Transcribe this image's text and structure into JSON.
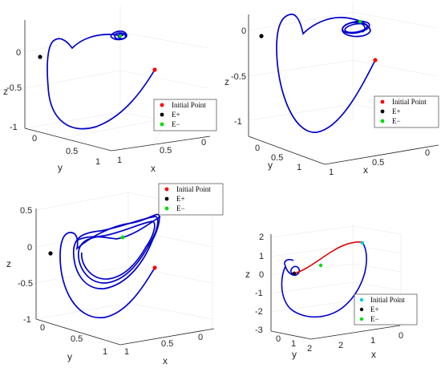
{
  "chart_data": [
    {
      "type": "line",
      "projection": "3d",
      "title": "",
      "xlabel": "x",
      "ylabel": "y",
      "zlabel": "z",
      "x_ticks": [
        "0",
        "0.5",
        "1"
      ],
      "y_ticks": [
        "0",
        "0.5",
        "1"
      ],
      "z_ticks": [
        "0",
        "-0.5",
        "-1"
      ],
      "xlim": [
        0,
        1
      ],
      "ylim": [
        0,
        1
      ],
      "zlim": [
        -1,
        0.1
      ],
      "grid": true,
      "legend_position": "bottom-right",
      "series": [
        {
          "name": "",
          "color": "#0000cc",
          "values": [
            [
              0.42,
              0.62,
              -0.35
            ],
            [
              0.6,
              0.75,
              -0.62
            ],
            [
              0.95,
              0.9,
              -0.95
            ],
            [
              0.6,
              0.2,
              -0.72
            ],
            [
              0.12,
              0.05,
              -0.2
            ],
            [
              0.05,
              0.08,
              0.08
            ],
            [
              0.2,
              0.2,
              0.02
            ],
            [
              0.3,
              0.4,
              0.09
            ],
            [
              0.32,
              0.55,
              0.1
            ]
          ]
        }
      ],
      "points": [
        {
          "name": "Initial Point",
          "color": "#ff0000",
          "values": [
            0.42,
            0.62,
            -0.35
          ]
        },
        {
          "name": "E+",
          "color": "#000000",
          "values": [
            0.0,
            0.0,
            -0.12
          ]
        },
        {
          "name": "E−",
          "color": "#00dd00",
          "values": [
            0.32,
            0.55,
            0.1
          ]
        }
      ],
      "legend": [
        {
          "label": "Initial Point",
          "color": "#ff0000"
        },
        {
          "label": "E+",
          "color": "#000000"
        },
        {
          "label": "E−",
          "color": "#00dd00"
        }
      ]
    },
    {
      "type": "line",
      "projection": "3d",
      "title": "",
      "xlabel": "x",
      "ylabel": "y",
      "zlabel": "z",
      "x_ticks": [
        "0",
        "0.5",
        "1"
      ],
      "y_ticks": [
        "0",
        "0.5",
        "1"
      ],
      "z_ticks": [
        "0",
        "-0.5",
        "-1"
      ],
      "xlim": [
        0,
        1
      ],
      "ylim": [
        0,
        1
      ],
      "zlim": [
        -1,
        0.1
      ],
      "grid": true,
      "legend_position": "bottom-right",
      "series": [
        {
          "name": "",
          "color": "#0000cc",
          "values": [
            [
              0.42,
              0.62,
              -0.35
            ],
            [
              0.7,
              0.85,
              -0.7
            ],
            [
              0.95,
              0.95,
              -0.9
            ],
            [
              0.6,
              0.3,
              -0.4
            ],
            [
              0.2,
              0.05,
              0.0
            ],
            [
              0.15,
              0.12,
              0.08
            ],
            [
              0.35,
              0.45,
              0.08
            ],
            [
              0.45,
              0.7,
              0.1
            ]
          ]
        }
      ],
      "points": [
        {
          "name": "Initial Point",
          "color": "#ff0000",
          "values": [
            0.42,
            0.62,
            -0.35
          ]
        },
        {
          "name": "E+",
          "color": "#000000",
          "values": [
            0.0,
            0.0,
            -0.12
          ]
        },
        {
          "name": "E−",
          "color": "#00dd00",
          "values": [
            0.4,
            0.62,
            0.1
          ]
        }
      ],
      "legend": [
        {
          "label": "Initial Point",
          "color": "#ff0000"
        },
        {
          "label": "E+",
          "color": "#000000"
        },
        {
          "label": "E−",
          "color": "#00dd00"
        }
      ]
    },
    {
      "type": "line",
      "projection": "3d",
      "title": "",
      "xlabel": "x",
      "ylabel": "y",
      "zlabel": "z",
      "x_ticks": [
        "0",
        "0.5",
        "1"
      ],
      "y_ticks": [
        "0",
        "0.5",
        "1"
      ],
      "z_ticks": [
        "0.5",
        "0",
        "-0.5",
        "-1"
      ],
      "xlim": [
        0,
        1
      ],
      "ylim": [
        0,
        1
      ],
      "zlim": [
        -1,
        0.5
      ],
      "grid": true,
      "legend_position": "top-right",
      "series": [
        {
          "name": "",
          "color": "#0000cc",
          "values": [
            [
              0.42,
              0.62,
              -0.3
            ],
            [
              0.6,
              0.8,
              -0.6
            ],
            [
              0.9,
              0.9,
              -0.85
            ],
            [
              0.6,
              0.3,
              -0.5
            ],
            [
              0.2,
              0.1,
              0.0
            ],
            [
              0.4,
              0.6,
              0.3
            ],
            [
              0.7,
              0.8,
              0.2
            ],
            [
              0.5,
              0.6,
              -0.2
            ]
          ]
        }
      ],
      "points": [
        {
          "name": "Initial Point",
          "color": "#ff0000",
          "values": [
            0.42,
            0.62,
            -0.3
          ]
        },
        {
          "name": "E+",
          "color": "#000000",
          "values": [
            0.0,
            0.0,
            -0.1
          ]
        },
        {
          "name": "E−",
          "color": "#00dd00",
          "values": [
            0.45,
            0.6,
            0.15
          ]
        }
      ],
      "legend": [
        {
          "label": "Initial Point",
          "color": "#ff0000"
        },
        {
          "label": "E+",
          "color": "#000000"
        },
        {
          "label": "E−",
          "color": "#00dd00"
        }
      ]
    },
    {
      "type": "line",
      "projection": "3d",
      "title": "",
      "xlabel": "x",
      "ylabel": "y",
      "zlabel": "z",
      "x_ticks": [
        "0",
        "1",
        "2"
      ],
      "y_ticks": [
        "0",
        "1",
        "2"
      ],
      "z_ticks": [
        "2",
        "1",
        "0",
        "-1",
        "-2",
        "-3"
      ],
      "xlim": [
        0,
        2
      ],
      "ylim": [
        0,
        2
      ],
      "zlim": [
        -3,
        2
      ],
      "grid": true,
      "legend_position": "bottom-right",
      "series": [
        {
          "name": "",
          "color": "#0000cc",
          "values": [
            [
              0.1,
              0.1,
              0.1
            ],
            [
              0.0,
              0.5,
              -1.5
            ],
            [
              0.8,
              1.5,
              -2.4
            ],
            [
              1.6,
              1.6,
              -1.0
            ],
            [
              1.8,
              1.4,
              1.2
            ]
          ]
        },
        {
          "name": "",
          "color": "#dd0000",
          "values": [
            [
              0.1,
              0.1,
              0.1
            ],
            [
              0.8,
              0.9,
              1.0
            ],
            [
              1.6,
              1.5,
              1.6
            ]
          ]
        }
      ],
      "points": [
        {
          "name": "Initial Point",
          "color": "#00cccc",
          "values": [
            1.7,
            1.5,
            1.6
          ]
        },
        {
          "name": "E+",
          "color": "#000000",
          "values": [
            0.1,
            0.1,
            0.1
          ]
        },
        {
          "name": "E−",
          "color": "#00dd00",
          "values": [
            0.6,
            0.7,
            0.5
          ]
        }
      ],
      "legend": [
        {
          "label": "Initial Point",
          "color": "#00cccc"
        },
        {
          "label": "E+",
          "color": "#000000"
        },
        {
          "label": "E−",
          "color": "#00dd00"
        }
      ]
    }
  ]
}
